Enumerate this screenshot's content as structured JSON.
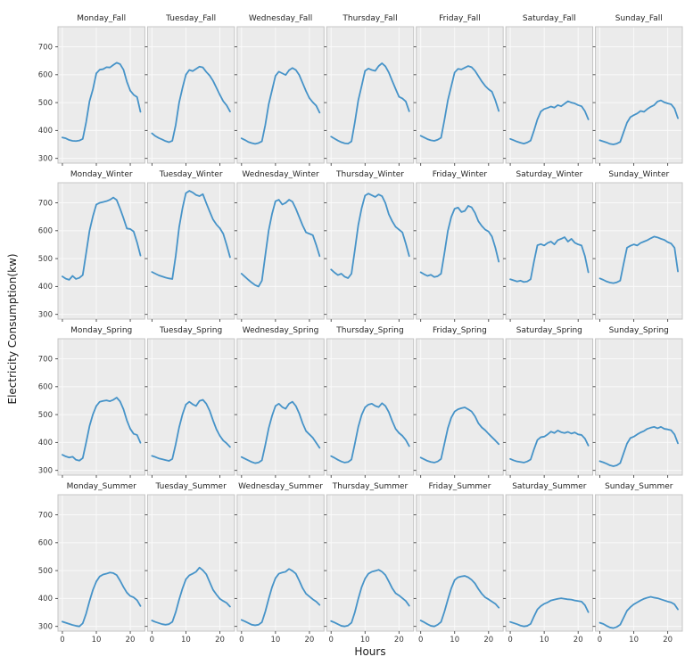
{
  "chart_data": {
    "type": "line",
    "title": "",
    "xlabel": "Hours",
    "ylabel": "Electricity Consumption(kw)",
    "layout": {
      "rows": [
        "Fall",
        "Winter",
        "Spring",
        "Summer"
      ],
      "cols": [
        "Monday",
        "Tuesday",
        "Wednesday",
        "Thursday",
        "Friday",
        "Saturday",
        "Sunday"
      ],
      "grid": true,
      "legend": false
    },
    "x": [
      0,
      1,
      2,
      3,
      4,
      5,
      6,
      7,
      8,
      9,
      10,
      11,
      12,
      13,
      14,
      15,
      16,
      17,
      18,
      19,
      20,
      21,
      22,
      23
    ],
    "xticks": [
      0,
      10,
      20
    ],
    "yticks": [
      300,
      400,
      500,
      600,
      700
    ],
    "xlim": [
      -1.3,
      24.3
    ],
    "ylim": [
      283,
      772
    ],
    "colors": {
      "line": "#4693c8",
      "axes_bg": "#ebebeb",
      "grid": "#fafafa",
      "spine": "#c4c4c4",
      "tick": "#444444",
      "tick_text": "#3a3a3a",
      "title_text": "#262626"
    },
    "facets": [
      {
        "title": "Monday_Fall",
        "values": [
          375,
          372,
          366,
          363,
          362,
          364,
          370,
          430,
          505,
          548,
          605,
          618,
          620,
          627,
          626,
          635,
          643,
          638,
          618,
          575,
          543,
          528,
          520,
          467
        ]
      },
      {
        "title": "Tuesday_Fall",
        "values": [
          390,
          380,
          373,
          368,
          362,
          358,
          363,
          420,
          500,
          553,
          600,
          617,
          613,
          621,
          629,
          626,
          610,
          597,
          578,
          553,
          528,
          505,
          490,
          468
        ]
      },
      {
        "title": "Wednesday_Fall",
        "values": [
          372,
          366,
          359,
          355,
          352,
          355,
          361,
          420,
          494,
          545,
          596,
          611,
          605,
          599,
          616,
          624,
          617,
          599,
          570,
          541,
          516,
          501,
          489,
          464
        ]
      },
      {
        "title": "Thursday_Fall",
        "values": [
          378,
          371,
          364,
          358,
          354,
          353,
          361,
          430,
          508,
          560,
          614,
          622,
          617,
          614,
          631,
          641,
          630,
          608,
          578,
          549,
          521,
          515,
          504,
          469
        ]
      },
      {
        "title": "Friday_Fall",
        "values": [
          381,
          375,
          369,
          365,
          363,
          367,
          374,
          438,
          508,
          558,
          608,
          621,
          619,
          625,
          631,
          627,
          614,
          595,
          576,
          560,
          548,
          539,
          508,
          470
        ]
      },
      {
        "title": "Saturday_Fall",
        "values": [
          370,
          365,
          360,
          356,
          353,
          357,
          364,
          400,
          440,
          468,
          477,
          481,
          486,
          482,
          491,
          487,
          496,
          505,
          500,
          497,
          491,
          487,
          469,
          440
        ]
      },
      {
        "title": "Sunday_Fall",
        "values": [
          365,
          361,
          357,
          352,
          350,
          353,
          359,
          394,
          428,
          448,
          455,
          461,
          470,
          467,
          477,
          485,
          491,
          504,
          508,
          501,
          497,
          494,
          479,
          444
        ]
      },
      {
        "title": "Monday_Winter",
        "values": [
          436,
          428,
          424,
          438,
          427,
          431,
          441,
          520,
          600,
          652,
          694,
          700,
          703,
          706,
          711,
          719,
          710,
          679,
          645,
          608,
          606,
          597,
          558,
          511
        ]
      },
      {
        "title": "Tuesday_Winter",
        "values": [
          452,
          446,
          440,
          436,
          432,
          429,
          427,
          510,
          612,
          681,
          735,
          743,
          737,
          728,
          724,
          731,
          699,
          669,
          640,
          622,
          609,
          589,
          549,
          505
        ]
      },
      {
        "title": "Wednesday_Winter",
        "values": [
          446,
          435,
          424,
          414,
          405,
          400,
          421,
          512,
          601,
          661,
          706,
          711,
          694,
          700,
          711,
          704,
          679,
          649,
          619,
          594,
          589,
          584,
          549,
          509
        ]
      },
      {
        "title": "Thursday_Winter",
        "values": [
          461,
          450,
          441,
          446,
          435,
          430,
          446,
          531,
          620,
          681,
          726,
          733,
          727,
          721,
          730,
          724,
          699,
          659,
          634,
          614,
          604,
          594,
          554,
          509
        ]
      },
      {
        "title": "Friday_Winter",
        "values": [
          451,
          444,
          438,
          442,
          434,
          437,
          446,
          520,
          599,
          649,
          679,
          683,
          667,
          671,
          689,
          684,
          664,
          634,
          617,
          604,
          597,
          579,
          539,
          489
        ]
      },
      {
        "title": "Saturday_Winter",
        "values": [
          426,
          422,
          418,
          421,
          416,
          418,
          426,
          490,
          548,
          552,
          547,
          556,
          561,
          551,
          566,
          571,
          577,
          561,
          571,
          557,
          551,
          547,
          509,
          451
        ]
      },
      {
        "title": "Sunday_Winter",
        "values": [
          429,
          424,
          418,
          414,
          412,
          415,
          421,
          481,
          539,
          546,
          551,
          547,
          556,
          561,
          566,
          573,
          579,
          576,
          571,
          567,
          559,
          554,
          539,
          454
        ]
      },
      {
        "title": "Monday_Spring",
        "values": [
          356,
          350,
          346,
          349,
          338,
          335,
          344,
          400,
          459,
          501,
          531,
          546,
          549,
          551,
          548,
          553,
          561,
          547,
          519,
          479,
          449,
          431,
          427,
          399
        ]
      },
      {
        "title": "Tuesday_Spring",
        "values": [
          352,
          348,
          343,
          340,
          337,
          334,
          341,
          394,
          454,
          501,
          536,
          546,
          537,
          531,
          549,
          553,
          539,
          514,
          479,
          447,
          424,
          407,
          397,
          384
        ]
      },
      {
        "title": "Wednesday_Spring",
        "values": [
          348,
          342,
          336,
          330,
          326,
          328,
          336,
          391,
          451,
          496,
          531,
          539,
          527,
          521,
          539,
          546,
          531,
          504,
          469,
          441,
          429,
          417,
          399,
          381
        ]
      },
      {
        "title": "Thursday_Spring",
        "values": [
          351,
          345,
          338,
          332,
          328,
          330,
          339,
          396,
          456,
          499,
          526,
          536,
          539,
          531,
          527,
          541,
          531,
          509,
          477,
          449,
          434,
          424,
          409,
          387
        ]
      },
      {
        "title": "Friday_Spring",
        "values": [
          346,
          340,
          334,
          330,
          328,
          332,
          341,
          396,
          451,
          489,
          511,
          519,
          523,
          526,
          519,
          511,
          494,
          469,
          454,
          444,
          431,
          419,
          407,
          394
        ]
      },
      {
        "title": "Saturday_Spring",
        "values": [
          341,
          336,
          332,
          330,
          328,
          332,
          339,
          376,
          409,
          419,
          421,
          429,
          439,
          434,
          443,
          437,
          434,
          438,
          432,
          436,
          429,
          427,
          414,
          389
        ]
      },
      {
        "title": "Sunday_Spring",
        "values": [
          333,
          329,
          324,
          318,
          315,
          318,
          326,
          361,
          396,
          416,
          421,
          429,
          436,
          441,
          449,
          453,
          456,
          451,
          456,
          449,
          447,
          444,
          429,
          397
        ]
      },
      {
        "title": "Monday_Summer",
        "values": [
          317,
          313,
          309,
          305,
          302,
          300,
          311,
          346,
          391,
          431,
          461,
          479,
          486,
          489,
          493,
          491,
          484,
          464,
          441,
          421,
          409,
          404,
          394,
          373
        ]
      },
      {
        "title": "Tuesday_Summer",
        "values": [
          321,
          316,
          312,
          308,
          306,
          308,
          316,
          351,
          396,
          436,
          469,
          483,
          489,
          496,
          511,
          501,
          487,
          459,
          431,
          414,
          399,
          391,
          384,
          371
        ]
      },
      {
        "title": "Wednesday_Summer",
        "values": [
          323,
          318,
          312,
          306,
          304,
          306,
          315,
          353,
          399,
          441,
          473,
          489,
          493,
          496,
          506,
          499,
          489,
          464,
          437,
          417,
          407,
          397,
          389,
          377
        ]
      },
      {
        "title": "Thursday_Summer",
        "values": [
          319,
          314,
          308,
          302,
          300,
          303,
          313,
          351,
          399,
          441,
          471,
          489,
          496,
          499,
          503,
          496,
          484,
          461,
          437,
          419,
          411,
          401,
          391,
          374
        ]
      },
      {
        "title": "Friday_Summer",
        "values": [
          321,
          315,
          308,
          302,
          300,
          306,
          316,
          353,
          396,
          436,
          466,
          476,
          479,
          481,
          476,
          467,
          454,
          434,
          417,
          404,
          397,
          389,
          381,
          367
        ]
      },
      {
        "title": "Saturday_Summer",
        "values": [
          316,
          312,
          308,
          303,
          300,
          302,
          309,
          336,
          361,
          373,
          381,
          386,
          393,
          396,
          399,
          401,
          399,
          397,
          396,
          393,
          391,
          389,
          376,
          351
        ]
      },
      {
        "title": "Sunday_Summer",
        "values": [
          313,
          309,
          302,
          296,
          294,
          298,
          306,
          331,
          356,
          369,
          379,
          386,
          393,
          399,
          403,
          406,
          403,
          401,
          397,
          393,
          389,
          386,
          379,
          361
        ]
      }
    ]
  }
}
